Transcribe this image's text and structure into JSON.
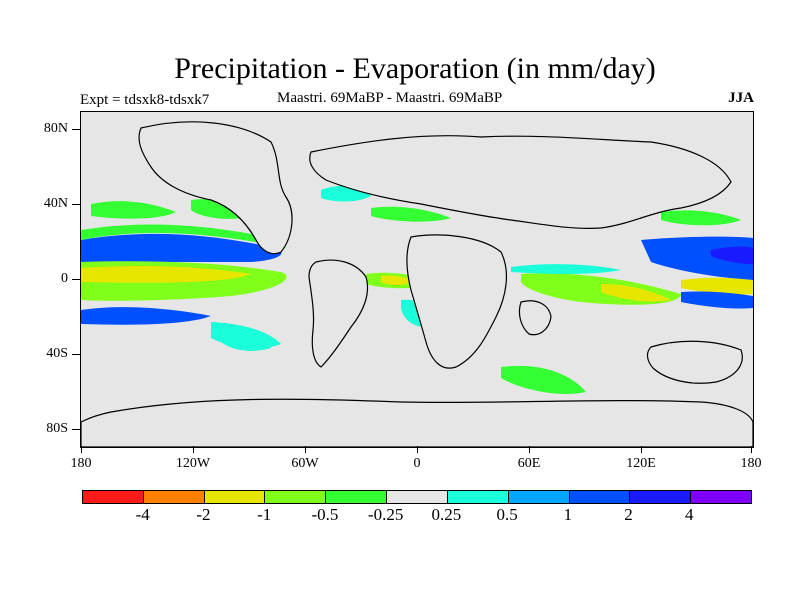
{
  "title": "Precipitation - Evaporation (in mm/day)",
  "subtitle_left": "Expt = tdsxk8-tdsxk7",
  "subtitle_center": "Maastri.  69MaBP - Maastri.  69MaBP",
  "subtitle_right": "JJA",
  "y_ticks": [
    "80N",
    "40N",
    "0",
    "40S",
    "80S"
  ],
  "x_ticks": [
    "180",
    "120W",
    "60W",
    "0",
    "60E",
    "120E",
    "180"
  ],
  "colorbar": {
    "colors": [
      "#ff1a1a",
      "#ff8000",
      "#e6e600",
      "#80ff1a",
      "#33ff33",
      "#e6e6e6",
      "#1affd9",
      "#00a6ff",
      "#0050ff",
      "#1a1aff",
      "#8000ff"
    ],
    "labels": [
      "-4",
      "-2",
      "-1",
      "-0.5",
      "-0.25",
      "0.25",
      "0.5",
      "1",
      "2",
      "4"
    ]
  },
  "map": {
    "background_color": "#e6e6e6",
    "coastline_color": "#000000"
  }
}
